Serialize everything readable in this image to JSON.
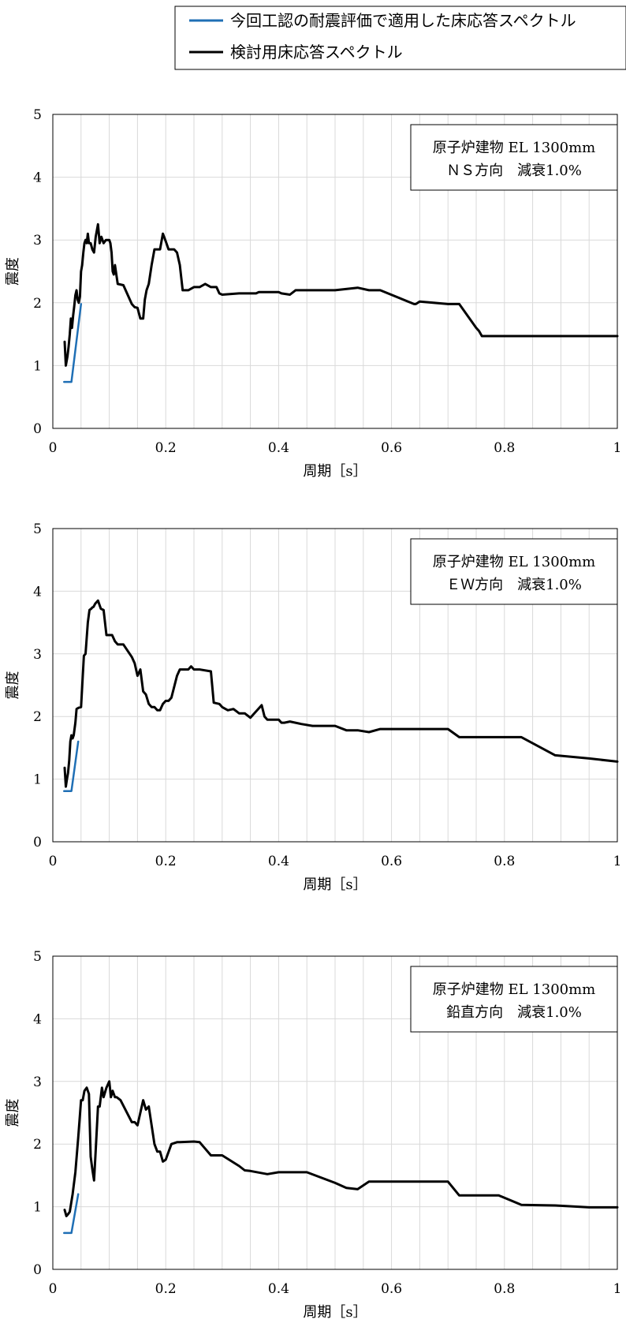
{
  "legend": {
    "items": [
      {
        "label": "今回工認の耐震評価で適用した床応答スペクトル",
        "color": "#1f6fb5"
      },
      {
        "label": "検討用床応答スペクトル",
        "color": "#000000"
      }
    ]
  },
  "chart_data": [
    {
      "type": "line",
      "title": "",
      "xlabel": "周期［s］",
      "ylabel": "震度",
      "xlim": [
        0,
        1
      ],
      "ylim": [
        0,
        5
      ],
      "x_ticks": [
        "0",
        "0.2",
        "0.4",
        "0.6",
        "0.8",
        "1"
      ],
      "y_ticks": [
        "0",
        "1",
        "2",
        "3",
        "4",
        "5"
      ],
      "grid": true,
      "annotation": {
        "line1": "原子炉建物 EL 1300mm",
        "line2": "ＮＳ方向　減衰1.0%"
      },
      "series": [
        {
          "name": "今回工認の耐震評価で適用した床応答スペクトル",
          "color": "#1f6fb5",
          "x": [
            0.02,
            0.033,
            0.05
          ],
          "y": [
            0.74,
            0.74,
            1.98
          ]
        },
        {
          "name": "検討用床応答スペクトル",
          "color": "#000000",
          "x": [
            0.021,
            0.023,
            0.026,
            0.028,
            0.03,
            0.032,
            0.034,
            0.036,
            0.038,
            0.04,
            0.042,
            0.044,
            0.046,
            0.048,
            0.05,
            0.052,
            0.054,
            0.056,
            0.058,
            0.06,
            0.062,
            0.064,
            0.067,
            0.07,
            0.073,
            0.076,
            0.08,
            0.083,
            0.086,
            0.09,
            0.094,
            0.098,
            0.1,
            0.102,
            0.104,
            0.106,
            0.108,
            0.11,
            0.115,
            0.125,
            0.14,
            0.145,
            0.15,
            0.155,
            0.16,
            0.163,
            0.166,
            0.17,
            0.175,
            0.18,
            0.185,
            0.19,
            0.195,
            0.2,
            0.205,
            0.21,
            0.215,
            0.22,
            0.225,
            0.23,
            0.235,
            0.24,
            0.25,
            0.255,
            0.26,
            0.27,
            0.28,
            0.29,
            0.295,
            0.3,
            0.33,
            0.36,
            0.365,
            0.37,
            0.4,
            0.405,
            0.42,
            0.43,
            0.45,
            0.5,
            0.54,
            0.56,
            0.58,
            0.64,
            0.643,
            0.65,
            0.7,
            0.72,
            0.75,
            0.755,
            0.76,
            0.83,
            0.89,
            0.95,
            1.0
          ],
          "y": [
            1.38,
            1.0,
            1.15,
            1.3,
            1.5,
            1.75,
            1.6,
            1.8,
            1.95,
            2.12,
            2.2,
            2.05,
            2.0,
            2.1,
            2.5,
            2.6,
            2.8,
            2.95,
            3.0,
            2.95,
            3.1,
            2.95,
            2.95,
            2.85,
            2.8,
            3.05,
            3.25,
            2.95,
            3.05,
            2.95,
            3.0,
            3.0,
            3.0,
            2.95,
            2.8,
            2.5,
            2.45,
            2.6,
            2.3,
            2.28,
            1.98,
            1.93,
            1.92,
            1.75,
            1.75,
            2.05,
            2.2,
            2.3,
            2.6,
            2.85,
            2.85,
            2.85,
            3.1,
            2.98,
            2.85,
            2.85,
            2.85,
            2.8,
            2.6,
            2.2,
            2.2,
            2.2,
            2.25,
            2.25,
            2.25,
            2.3,
            2.25,
            2.25,
            2.15,
            2.13,
            2.15,
            2.15,
            2.17,
            2.17,
            2.17,
            2.15,
            2.13,
            2.2,
            2.2,
            2.2,
            2.24,
            2.2,
            2.2,
            1.98,
            1.98,
            2.02,
            1.98,
            1.98,
            1.6,
            1.55,
            1.47,
            1.47,
            1.47,
            1.47,
            1.47
          ]
        }
      ]
    },
    {
      "type": "line",
      "title": "",
      "xlabel": "周期［s］",
      "ylabel": "震度",
      "xlim": [
        0,
        1
      ],
      "ylim": [
        0,
        5
      ],
      "x_ticks": [
        "0",
        "0.2",
        "0.4",
        "0.6",
        "0.8",
        "1"
      ],
      "y_ticks": [
        "0",
        "1",
        "2",
        "3",
        "4",
        "5"
      ],
      "grid": true,
      "annotation": {
        "line1": "原子炉建物 EL 1300mm",
        "line2": "ＥＷ方向　減衰1.0%"
      },
      "series": [
        {
          "name": "今回工認の耐震評価で適用した床応答スペクトル",
          "color": "#1f6fb5",
          "x": [
            0.02,
            0.033,
            0.045
          ],
          "y": [
            0.81,
            0.81,
            1.6
          ]
        },
        {
          "name": "検討用床応答スペクトル",
          "color": "#000000",
          "x": [
            0.021,
            0.023,
            0.025,
            0.027,
            0.029,
            0.031,
            0.033,
            0.035,
            0.037,
            0.04,
            0.042,
            0.046,
            0.05,
            0.055,
            0.058,
            0.062,
            0.065,
            0.068,
            0.07,
            0.072,
            0.075,
            0.08,
            0.085,
            0.09,
            0.095,
            0.1,
            0.105,
            0.11,
            0.115,
            0.125,
            0.14,
            0.145,
            0.15,
            0.155,
            0.16,
            0.165,
            0.17,
            0.175,
            0.18,
            0.185,
            0.19,
            0.195,
            0.2,
            0.205,
            0.21,
            0.22,
            0.225,
            0.23,
            0.24,
            0.245,
            0.25,
            0.255,
            0.26,
            0.28,
            0.285,
            0.295,
            0.3,
            0.31,
            0.32,
            0.33,
            0.34,
            0.35,
            0.37,
            0.375,
            0.38,
            0.4,
            0.405,
            0.41,
            0.42,
            0.44,
            0.46,
            0.5,
            0.52,
            0.54,
            0.56,
            0.58,
            0.64,
            0.643,
            0.65,
            0.7,
            0.72,
            0.75,
            0.83,
            0.89,
            0.95,
            1.0
          ],
          "y": [
            1.18,
            0.88,
            1.0,
            1.1,
            1.3,
            1.6,
            1.7,
            1.65,
            1.7,
            1.9,
            2.12,
            2.14,
            2.15,
            2.97,
            3.0,
            3.5,
            3.7,
            3.72,
            3.74,
            3.75,
            3.8,
            3.85,
            3.72,
            3.7,
            3.3,
            3.3,
            3.3,
            3.2,
            3.15,
            3.15,
            2.95,
            2.85,
            2.65,
            2.75,
            2.4,
            2.35,
            2.2,
            2.15,
            2.15,
            2.1,
            2.1,
            2.2,
            2.25,
            2.25,
            2.3,
            2.65,
            2.75,
            2.75,
            2.75,
            2.8,
            2.75,
            2.75,
            2.75,
            2.72,
            2.22,
            2.2,
            2.15,
            2.1,
            2.12,
            2.05,
            2.05,
            1.98,
            2.18,
            2.0,
            1.95,
            1.95,
            1.9,
            1.9,
            1.92,
            1.88,
            1.85,
            1.85,
            1.78,
            1.78,
            1.75,
            1.8,
            1.8,
            1.8,
            1.8,
            1.8,
            1.67,
            1.67,
            1.67,
            1.38,
            1.33,
            1.28
          ]
        }
      ]
    },
    {
      "type": "line",
      "title": "",
      "xlabel": "周期［s］",
      "ylabel": "震度",
      "xlim": [
        0,
        1
      ],
      "ylim": [
        0,
        5
      ],
      "x_ticks": [
        "0",
        "0.2",
        "0.4",
        "0.6",
        "0.8",
        "1"
      ],
      "y_ticks": [
        "0",
        "1",
        "2",
        "3",
        "4",
        "5"
      ],
      "grid": true,
      "annotation": {
        "line1": "原子炉建物 EL 1300mm",
        "line2": "鉛直方向　減衰1.0%"
      },
      "series": [
        {
          "name": "今回工認の耐震評価で適用した床応答スペクトル",
          "color": "#1f6fb5",
          "x": [
            0.02,
            0.033,
            0.045
          ],
          "y": [
            0.58,
            0.58,
            1.2
          ]
        },
        {
          "name": "検討用床応答スペクトル",
          "color": "#000000",
          "x": [
            0.021,
            0.024,
            0.027,
            0.03,
            0.035,
            0.04,
            0.045,
            0.05,
            0.053,
            0.056,
            0.06,
            0.064,
            0.067,
            0.07,
            0.073,
            0.076,
            0.08,
            0.083,
            0.087,
            0.09,
            0.095,
            0.1,
            0.103,
            0.106,
            0.11,
            0.113,
            0.12,
            0.14,
            0.145,
            0.15,
            0.16,
            0.165,
            0.17,
            0.175,
            0.18,
            0.185,
            0.19,
            0.195,
            0.2,
            0.21,
            0.22,
            0.225,
            0.25,
            0.26,
            0.28,
            0.29,
            0.3,
            0.33,
            0.34,
            0.35,
            0.38,
            0.4,
            0.45,
            0.5,
            0.52,
            0.54,
            0.56,
            0.58,
            0.64,
            0.643,
            0.65,
            0.7,
            0.72,
            0.75,
            0.79,
            0.83,
            0.89,
            0.95,
            1.0
          ],
          "y": [
            0.95,
            0.85,
            0.88,
            0.92,
            1.2,
            1.55,
            2.1,
            2.7,
            2.7,
            2.85,
            2.9,
            2.8,
            1.8,
            1.6,
            1.42,
            1.9,
            2.6,
            2.6,
            2.9,
            2.75,
            2.9,
            3.0,
            2.75,
            2.85,
            2.75,
            2.75,
            2.7,
            2.35,
            2.35,
            2.3,
            2.7,
            2.55,
            2.6,
            2.3,
            2.0,
            1.88,
            1.88,
            1.72,
            1.75,
            2.0,
            2.03,
            2.03,
            2.04,
            2.03,
            1.82,
            1.82,
            1.82,
            1.65,
            1.58,
            1.57,
            1.52,
            1.55,
            1.55,
            1.38,
            1.3,
            1.28,
            1.4,
            1.4,
            1.4,
            1.4,
            1.4,
            1.4,
            1.18,
            1.18,
            1.18,
            1.03,
            1.02,
            0.99,
            0.99
          ]
        }
      ]
    }
  ]
}
